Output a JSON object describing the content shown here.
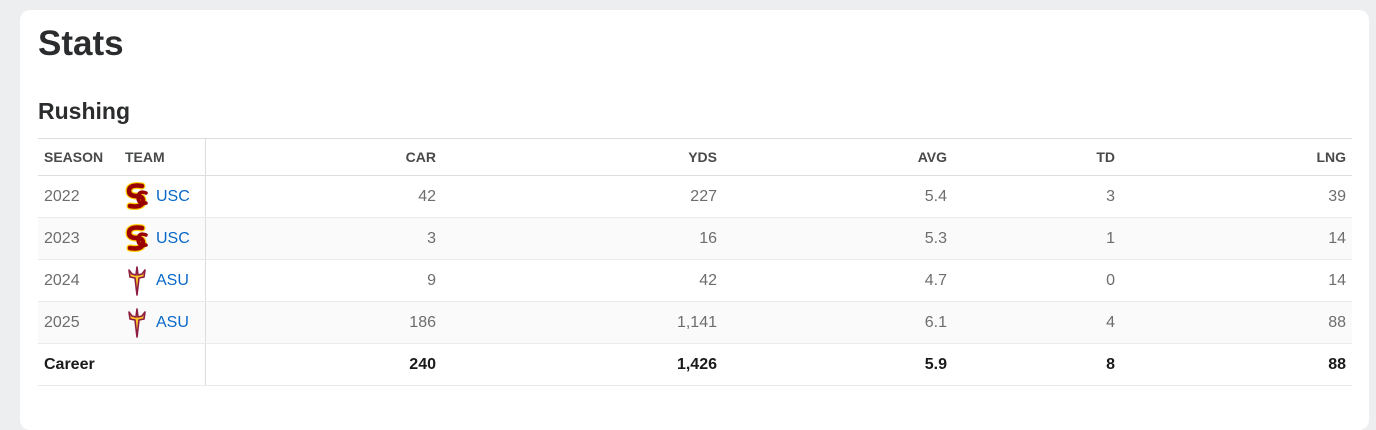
{
  "title": "Stats",
  "section": "Rushing",
  "columns": {
    "season": "SEASON",
    "team": "TEAM",
    "car": "CAR",
    "yds": "YDS",
    "avg": "AVG",
    "td": "TD",
    "lng": "LNG"
  },
  "rows": [
    {
      "season": "2022",
      "team": "USC",
      "logo": "usc-sc-logo-icon",
      "car": "42",
      "yds": "227",
      "avg": "5.4",
      "td": "3",
      "lng": "39"
    },
    {
      "season": "2023",
      "team": "USC",
      "logo": "usc-sc-logo-icon",
      "car": "3",
      "yds": "16",
      "avg": "5.3",
      "td": "1",
      "lng": "14"
    },
    {
      "season": "2024",
      "team": "ASU",
      "logo": "asu-pitchfork-logo-icon",
      "car": "9",
      "yds": "42",
      "avg": "4.7",
      "td": "0",
      "lng": "14"
    },
    {
      "season": "2025",
      "team": "ASU",
      "logo": "asu-pitchfork-logo-icon",
      "car": "186",
      "yds": "1,141",
      "avg": "6.1",
      "td": "4",
      "lng": "88"
    }
  ],
  "career": {
    "label": "Career",
    "car": "240",
    "yds": "1,426",
    "avg": "5.9",
    "td": "8",
    "lng": "88"
  },
  "colors": {
    "link": "#0868c7",
    "usc": "#990000",
    "usc_gold": "#ffcc00",
    "asu_maroon": "#8c1d40",
    "asu_gold": "#ffc627"
  }
}
